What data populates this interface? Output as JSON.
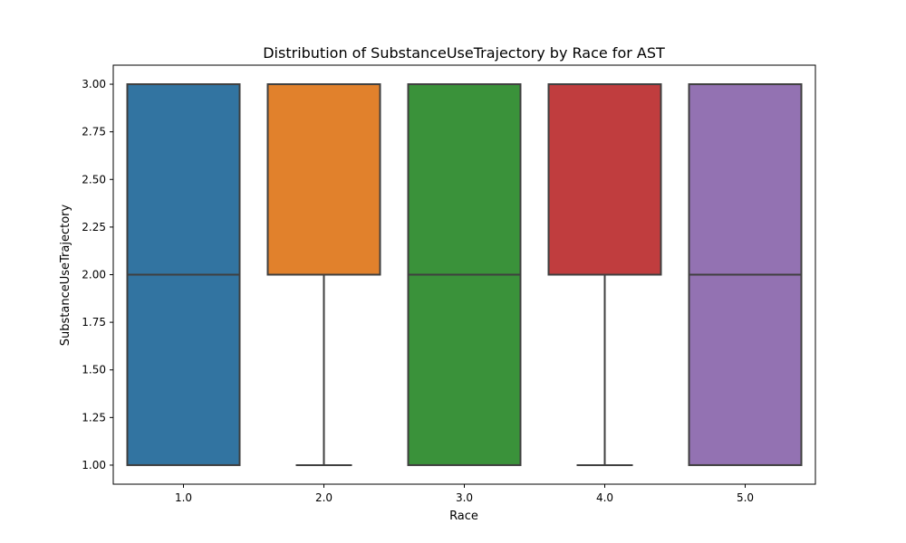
{
  "chart_data": {
    "type": "box",
    "title": "Distribution of SubstanceUseTrajectory by Race for AST",
    "xlabel": "Race",
    "ylabel": "SubstanceUseTrajectory",
    "categories": [
      "1.0",
      "2.0",
      "3.0",
      "4.0",
      "5.0"
    ],
    "boxes": [
      {
        "category": "1.0",
        "whisker_low": 1.0,
        "q1": 1.0,
        "median": 2.0,
        "q3": 3.0,
        "whisker_high": 3.0,
        "color": "#3274a1"
      },
      {
        "category": "2.0",
        "whisker_low": 1.0,
        "q1": 2.0,
        "median": 2.0,
        "q3": 3.0,
        "whisker_high": 3.0,
        "color": "#e1812c"
      },
      {
        "category": "3.0",
        "whisker_low": 1.0,
        "q1": 1.0,
        "median": 2.0,
        "q3": 3.0,
        "whisker_high": 3.0,
        "color": "#3a923a"
      },
      {
        "category": "4.0",
        "whisker_low": 1.0,
        "q1": 2.0,
        "median": 2.0,
        "q3": 3.0,
        "whisker_high": 3.0,
        "color": "#c03d3e"
      },
      {
        "category": "5.0",
        "whisker_low": 1.0,
        "q1": 1.0,
        "median": 2.0,
        "q3": 3.0,
        "whisker_high": 3.0,
        "color": "#9372b2"
      }
    ],
    "y_ticks": [
      "1.00",
      "1.25",
      "1.50",
      "1.75",
      "2.00",
      "2.25",
      "2.50",
      "2.75",
      "3.00"
    ],
    "ylim": [
      0.9,
      3.1
    ],
    "grid": false,
    "line_color": "#3f3f3f"
  }
}
